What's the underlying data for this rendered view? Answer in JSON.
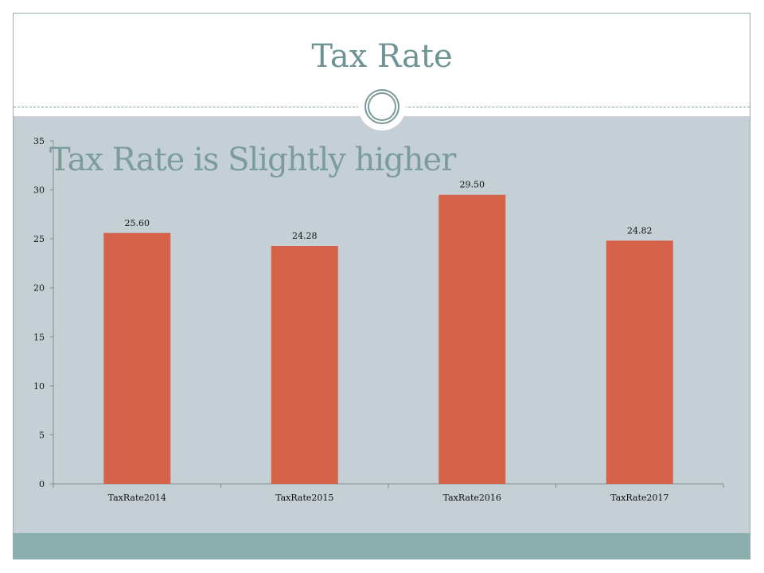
{
  "slide": {
    "title": "Tax Rate",
    "subtitle": "Tax Rate is Slightly higher"
  },
  "colors": {
    "bar": "#d4634a",
    "body": "#c5d0d6",
    "footer": "#8aaeae",
    "title": "#6f9292"
  },
  "chart_data": {
    "type": "bar",
    "categories": [
      "TaxRate2014",
      "TaxRate2015",
      "TaxRate2016",
      "TaxRate2017"
    ],
    "values": [
      25.6,
      24.28,
      29.5,
      24.82
    ],
    "data_labels": [
      "25.60",
      "24.28",
      "29.50",
      "24.82"
    ],
    "yticks": [
      "0",
      "5",
      "10",
      "15",
      "20",
      "25",
      "30",
      "35"
    ],
    "ylim": [
      0,
      35
    ],
    "title": "",
    "xlabel": "",
    "ylabel": "",
    "grid": false,
    "legend": "none"
  }
}
